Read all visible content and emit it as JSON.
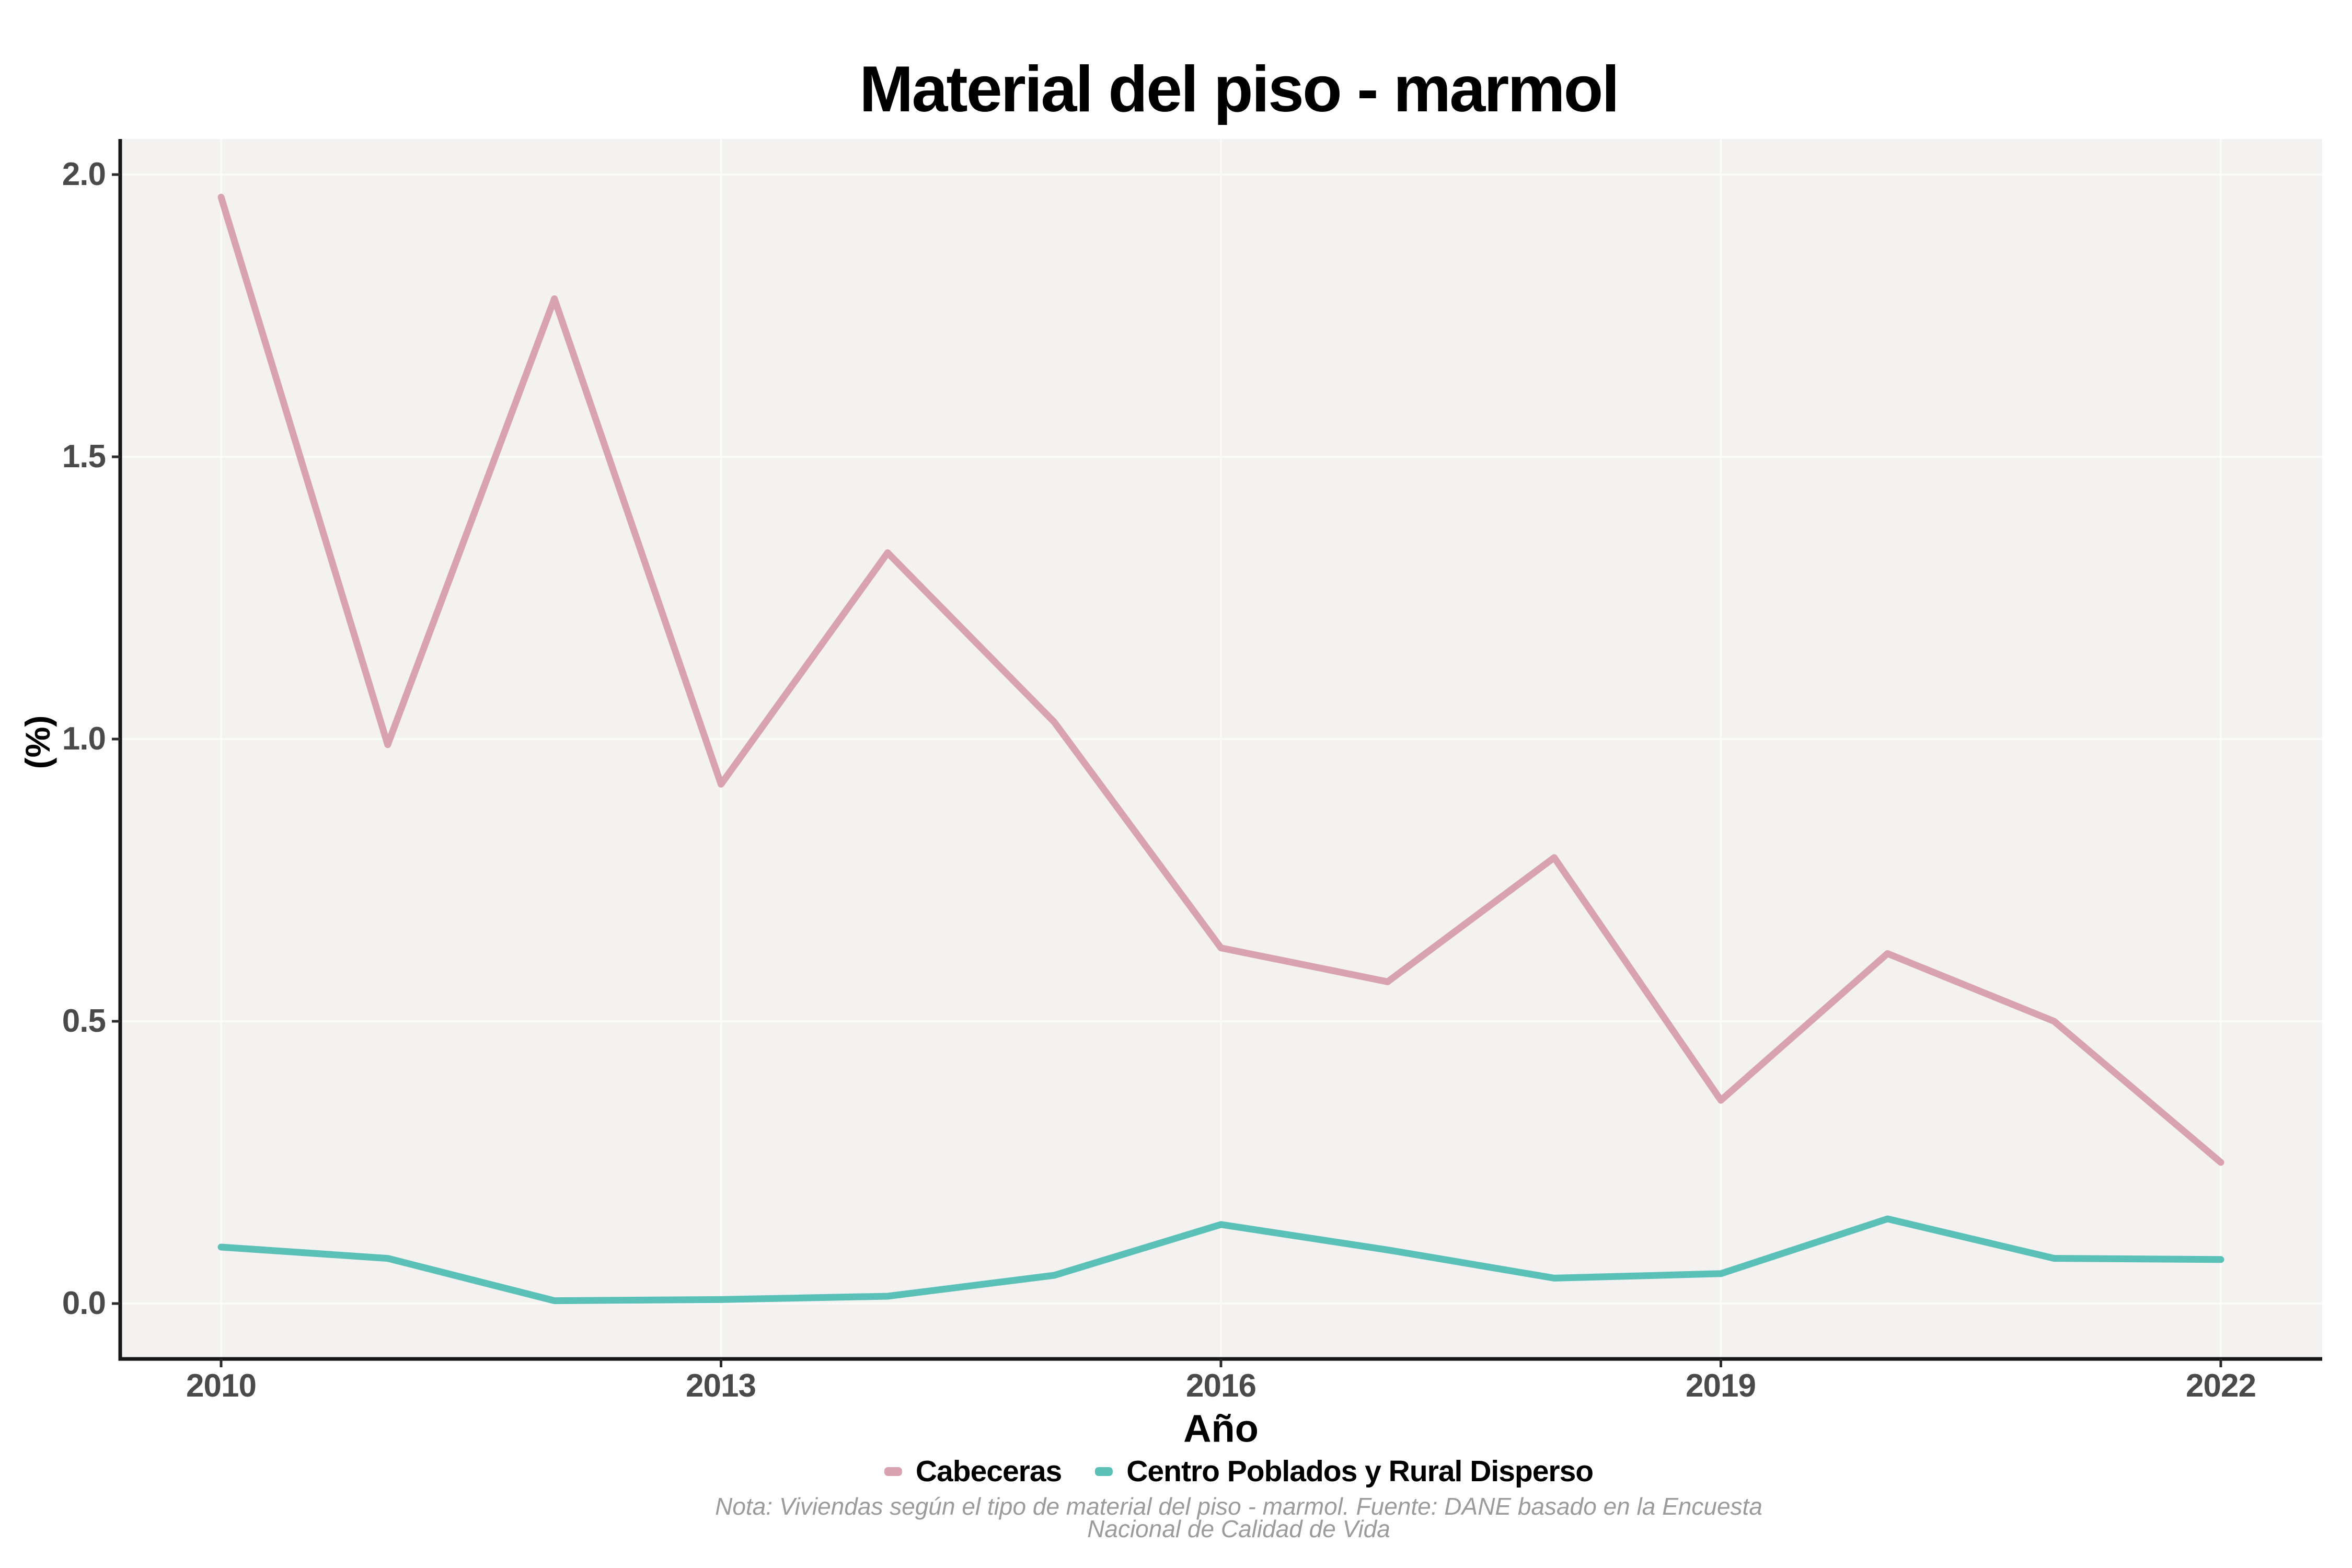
{
  "title": "Material del piso - marmol",
  "chart_data": {
    "type": "line",
    "x": [
      2010,
      2011,
      2012,
      2013,
      2014,
      2015,
      2016,
      2017,
      2018,
      2019,
      2020,
      2021,
      2022
    ],
    "series": [
      {
        "name": "Cabeceras",
        "color": "#d9a2b0",
        "values": [
          1.96,
          0.99,
          1.78,
          0.92,
          1.33,
          1.03,
          0.63,
          0.57,
          0.79,
          0.36,
          0.62,
          0.5,
          0.25
        ]
      },
      {
        "name": "Centro Poblados y Rural Disperso",
        "color": "#5bc0b7",
        "values": [
          0.1,
          0.08,
          0.005,
          0.007,
          0.013,
          0.05,
          0.14,
          0.095,
          0.045,
          0.053,
          0.15,
          0.08,
          0.078
        ]
      }
    ],
    "xlabel": "Año",
    "ylabel": "(%)",
    "xlim": [
      2009.4,
      2022.6
    ],
    "ylim": [
      -0.1,
      2.06
    ],
    "xticks": [
      2010,
      2013,
      2016,
      2019,
      2022
    ],
    "xtick_labels": [
      "2010",
      "2013",
      "2016",
      "2019",
      "2022"
    ],
    "yticks": [
      0,
      0.5,
      1,
      1.5,
      2
    ],
    "ytick_labels": [
      "0.0",
      "0.5",
      "1.0",
      "1.5",
      "2.0"
    ],
    "grid": "major",
    "legend_position": "bottom"
  },
  "caption": {
    "line1": "Nota: Viviendas según el tipo de material del piso - marmol. Fuente: DANE basado en la Encuesta",
    "line2": "Nacional de Calidad de Vida"
  },
  "colors": {
    "panel_bg": "#f3f2f1",
    "gridline": "#fbfbfa",
    "axis_line": "#161616",
    "tick_mark": "#2b2b2b",
    "tick_label": "#4a4a4a",
    "title": "#000000",
    "caption": "#9b9b9b"
  }
}
